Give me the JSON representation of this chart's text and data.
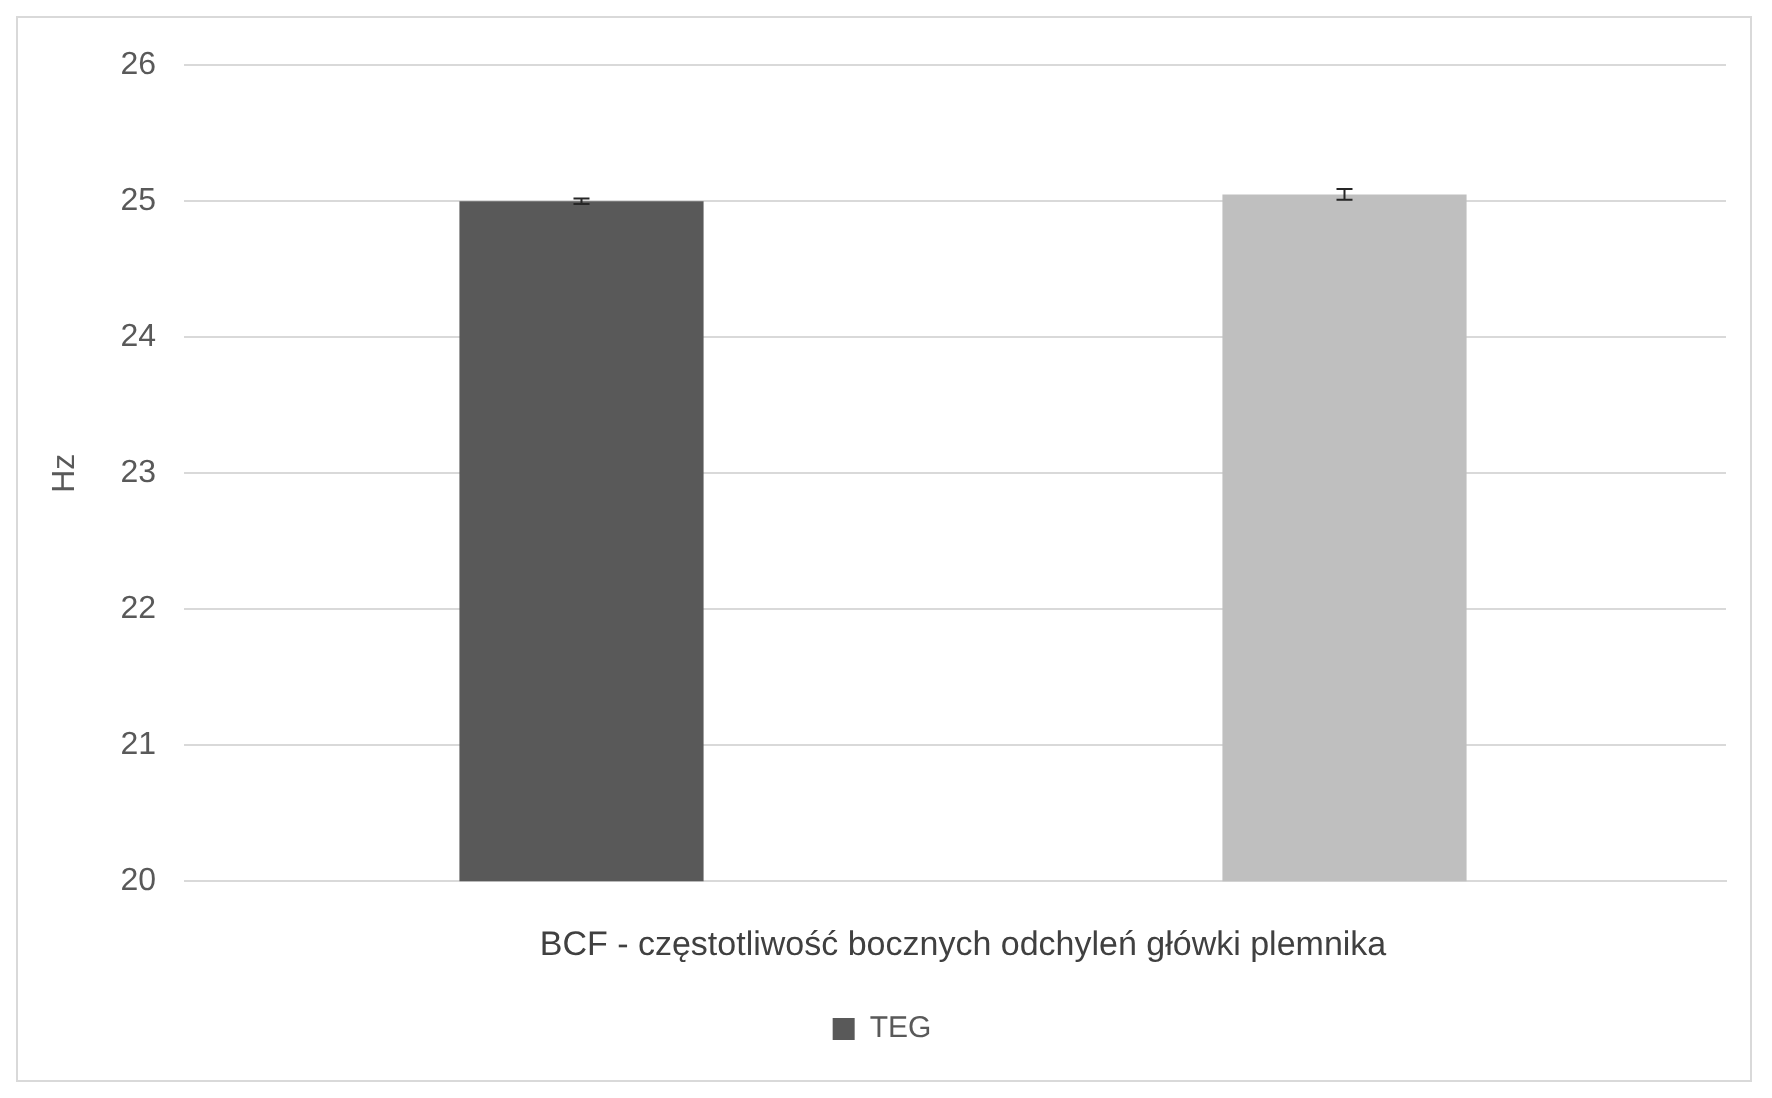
{
  "chart_data": {
    "type": "bar",
    "categories": [
      null
    ],
    "xlabel": "BCF - częstotliwość bocznych odchyleń główki plemnika",
    "ylabel": "Hz",
    "ylim": [
      20,
      26
    ],
    "yticks": [
      20,
      21,
      22,
      23,
      24,
      25,
      26
    ],
    "grid": "y",
    "legend": "bottom",
    "series": [
      {
        "name": "TEG",
        "color": "#595959",
        "values": [
          25.0
        ],
        "errors": [
          0.02
        ]
      },
      {
        "color": "#bfbfbf",
        "values": [
          25.05
        ],
        "errors": [
          0.04
        ]
      }
    ]
  }
}
